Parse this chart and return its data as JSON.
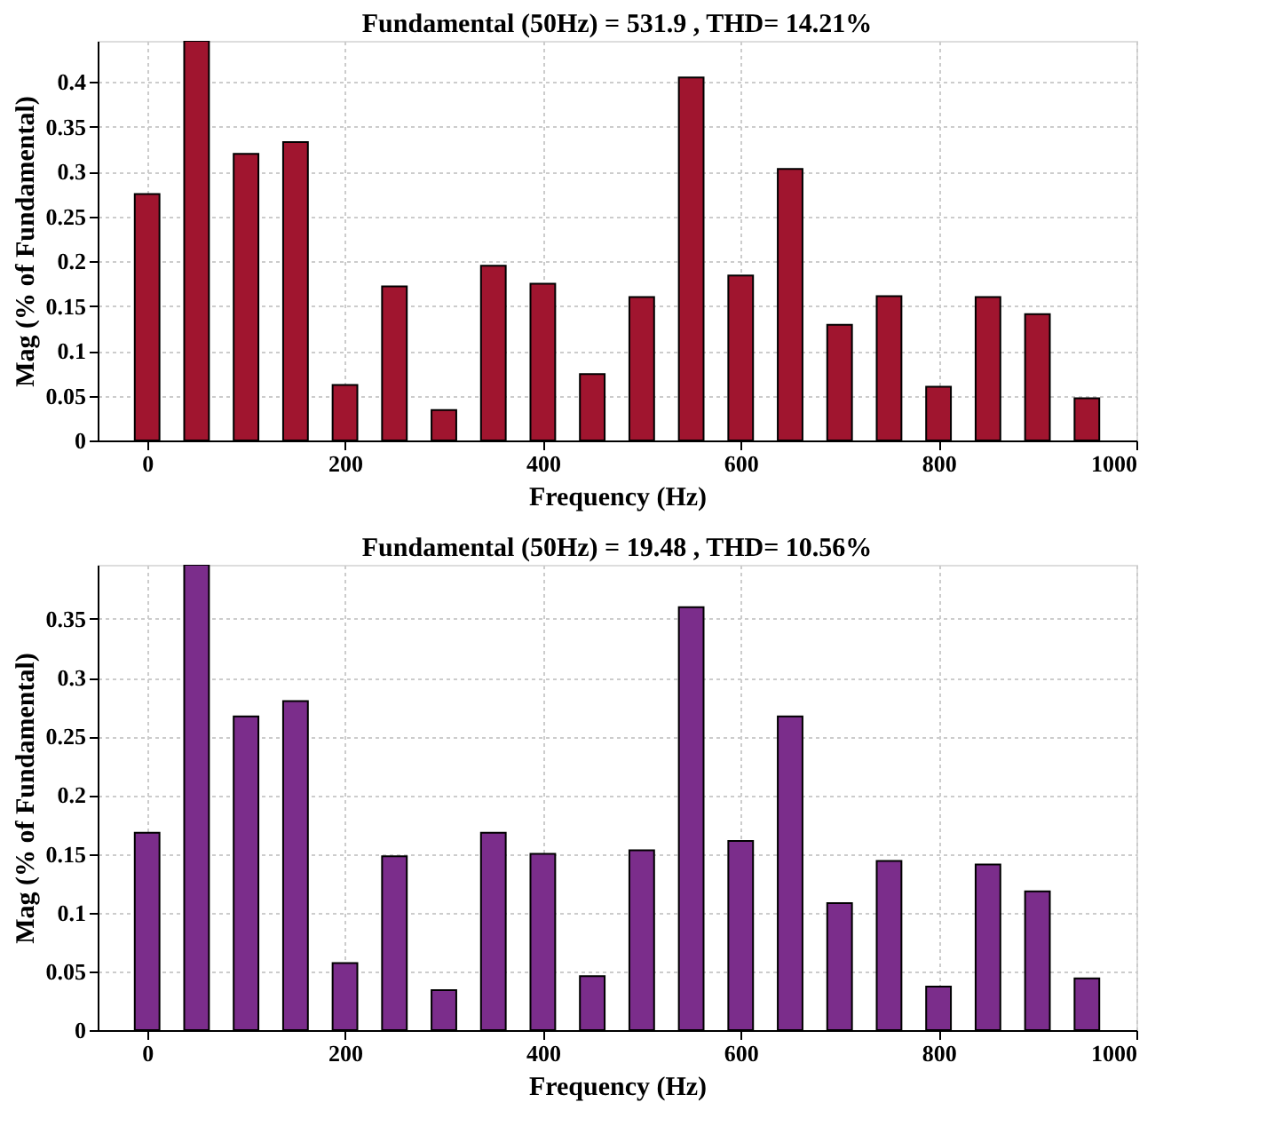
{
  "chart_data": [
    {
      "type": "bar",
      "title": "Fundamental (50Hz) = 531.9 , THD= 14.21%",
      "xlabel": "Frequency (Hz)",
      "ylabel": "Mag (% of Fundamental)",
      "x": [
        0,
        50,
        100,
        150,
        200,
        250,
        300,
        350,
        400,
        450,
        500,
        550,
        600,
        650,
        700,
        750,
        800,
        850,
        900,
        950
      ],
      "series": [
        {
          "color": "#a0152f",
          "values": [
            0.275,
            0.446,
            0.32,
            0.333,
            0.062,
            0.172,
            0.034,
            0.195,
            0.175,
            0.074,
            0.16,
            0.405,
            0.184,
            0.303,
            0.129,
            0.161,
            0.06,
            0.16,
            0.141,
            0.047
          ]
        }
      ],
      "xlim": [
        -50,
        1000
      ],
      "xticks": [
        0,
        200,
        400,
        600,
        800,
        1000
      ],
      "ylim": [
        0,
        0.446
      ],
      "yticks": [
        0,
        0.05,
        0.1,
        0.15,
        0.2,
        0.25,
        0.3,
        0.35,
        0.4
      ],
      "grid": true
    },
    {
      "type": "bar",
      "title": "Fundamental (50Hz) = 19.48 , THD= 10.56%",
      "xlabel": "Frequency (Hz)",
      "ylabel": "Mag (% of Fundamental)",
      "x": [
        0,
        50,
        100,
        150,
        200,
        250,
        300,
        350,
        400,
        450,
        500,
        550,
        600,
        650,
        700,
        750,
        800,
        850,
        900,
        950
      ],
      "series": [
        {
          "color": "#7b2d8b",
          "values": [
            0.168,
            0.396,
            0.267,
            0.28,
            0.057,
            0.148,
            0.034,
            0.168,
            0.15,
            0.046,
            0.153,
            0.36,
            0.161,
            0.267,
            0.108,
            0.144,
            0.037,
            0.141,
            0.118,
            0.044
          ]
        }
      ],
      "xlim": [
        -50,
        1000
      ],
      "xticks": [
        0,
        200,
        400,
        600,
        800,
        1000
      ],
      "ylim": [
        0,
        0.396
      ],
      "yticks": [
        0,
        0.05,
        0.1,
        0.15,
        0.2,
        0.25,
        0.3,
        0.35
      ],
      "grid": true
    }
  ]
}
